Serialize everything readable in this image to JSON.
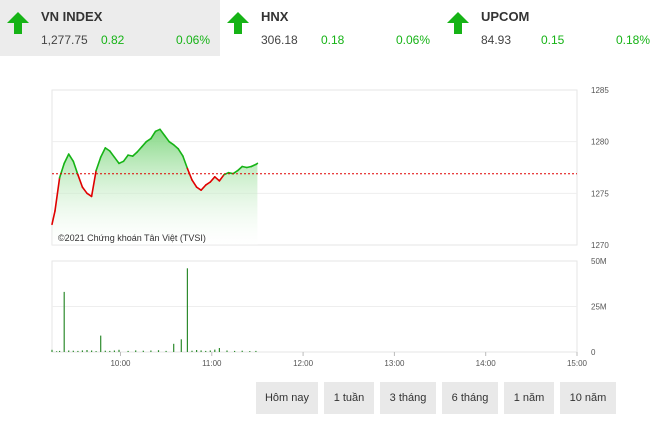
{
  "indices": [
    {
      "name": "VN INDEX",
      "value": "1,277.75",
      "change": "0.82",
      "pct": "0.06%"
    },
    {
      "name": "HNX",
      "value": "306.18",
      "change": "0.18",
      "pct": "0.06%"
    },
    {
      "name": "UPCOM",
      "value": "84.93",
      "change": "0.15",
      "pct": "0.18%"
    }
  ],
  "colors": {
    "up": "#16b316",
    "down": "#e00000",
    "reference": "#e00000",
    "volume": "#2e8b2e"
  },
  "copyright": "©2021 Chứng khoán Tân Việt (TVSI)",
  "buttons": [
    "Hôm nay",
    "1 tuần",
    "3 tháng",
    "6 tháng",
    "1 năm",
    "10 năm"
  ],
  "chart_data": [
    {
      "type": "line",
      "reference": 1276.9,
      "ylim": [
        1270,
        1285
      ],
      "yticks": [
        "1285",
        "1280",
        "1275",
        "1270"
      ],
      "xlim": [
        "09:15",
        "15:00"
      ],
      "x": [
        "09:15",
        "09:17",
        "09:20",
        "09:23",
        "09:26",
        "09:29",
        "09:32",
        "09:35",
        "09:38",
        "09:41",
        "09:44",
        "09:47",
        "09:50",
        "09:53",
        "09:56",
        "09:59",
        "10:02",
        "10:05",
        "10:08",
        "10:11",
        "10:14",
        "10:17",
        "10:20",
        "10:23",
        "10:26",
        "10:29",
        "10:32",
        "10:35",
        "10:38",
        "10:41",
        "10:44",
        "10:47",
        "10:50",
        "10:53",
        "10:56",
        "10:59",
        "11:02",
        "11:05",
        "11:08",
        "11:11",
        "11:14",
        "11:17",
        "11:20",
        "11:23",
        "11:26",
        "11:29",
        "11:30"
      ],
      "y": [
        1272.0,
        1273.3,
        1276.5,
        1277.9,
        1278.8,
        1278.1,
        1276.8,
        1275.6,
        1275.0,
        1274.7,
        1277.2,
        1278.5,
        1279.4,
        1279.1,
        1278.5,
        1277.9,
        1278.1,
        1278.7,
        1278.6,
        1279.0,
        1279.5,
        1280.0,
        1280.3,
        1281.0,
        1281.2,
        1280.6,
        1280.0,
        1279.7,
        1279.3,
        1278.6,
        1277.4,
        1276.3,
        1275.6,
        1275.3,
        1275.8,
        1276.1,
        1276.6,
        1276.2,
        1276.8,
        1277.0,
        1276.9,
        1277.2,
        1277.6,
        1277.5,
        1277.6,
        1277.8,
        1277.9
      ],
      "copyright": "©2021 Chứng khoán Tân Việt (TVSI)"
    },
    {
      "type": "bar",
      "ylim": [
        0,
        50
      ],
      "yticks": [
        "50M",
        "25M",
        "0"
      ],
      "xticks": [
        "10:00",
        "11:00",
        "12:00",
        "13:00",
        "14:00",
        "15:00"
      ],
      "xlim": [
        "09:15",
        "15:00"
      ],
      "x": [
        "09:15",
        "09:18",
        "09:20",
        "09:23",
        "09:26",
        "09:29",
        "09:32",
        "09:35",
        "09:38",
        "09:41",
        "09:44",
        "09:47",
        "09:50",
        "09:53",
        "09:56",
        "09:59",
        "10:05",
        "10:10",
        "10:15",
        "10:20",
        "10:25",
        "10:30",
        "10:35",
        "10:40",
        "10:44",
        "10:47",
        "10:50",
        "10:53",
        "10:56",
        "10:59",
        "11:02",
        "11:05",
        "11:10",
        "11:15",
        "11:20",
        "11:25",
        "11:29"
      ],
      "values": [
        1.2,
        0.4,
        0.6,
        33,
        0.8,
        0.7,
        0.6,
        0.9,
        1.1,
        0.8,
        0.5,
        9,
        0.7,
        0.6,
        0.8,
        1.2,
        0.6,
        0.9,
        0.7,
        0.8,
        1.0,
        0.6,
        4.5,
        7,
        46,
        0.7,
        1.1,
        0.9,
        0.6,
        0.8,
        1.3,
        2.2,
        0.8,
        0.6,
        0.7,
        0.5,
        0.6
      ]
    }
  ]
}
